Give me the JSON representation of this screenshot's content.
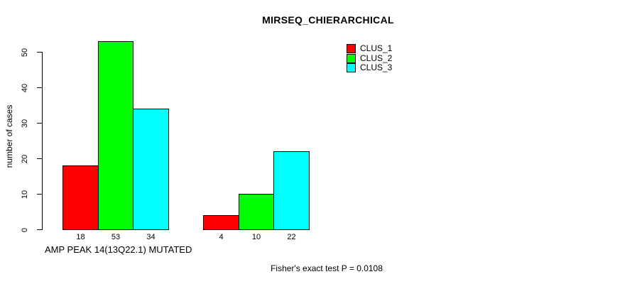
{
  "chart_data": {
    "type": "bar",
    "title": "MIRSEQ_CHIERARCHICAL",
    "ylabel": "number of cases",
    "xlabel": "AMP PEAK 14(13Q22.1) MUTATED",
    "footer": "Fisher's exact test P = 0.0108",
    "ylim": [
      0,
      53
    ],
    "yticks": [
      0,
      10,
      20,
      30,
      40,
      50
    ],
    "grid": false,
    "background": "#ffffff",
    "axis_color": "#000000",
    "legend_position": "top-right",
    "group_count": 2,
    "series": [
      {
        "name": "CLUS_1",
        "color": "#ff0000",
        "values": [
          18,
          4
        ]
      },
      {
        "name": "CLUS_2",
        "color": "#00ff00",
        "values": [
          53,
          10
        ]
      },
      {
        "name": "CLUS_3",
        "color": "#00ffff",
        "values": [
          34,
          22
        ]
      }
    ],
    "bar_value_labels": [
      [
        18,
        53,
        34
      ],
      [
        4,
        10,
        22
      ]
    ]
  }
}
